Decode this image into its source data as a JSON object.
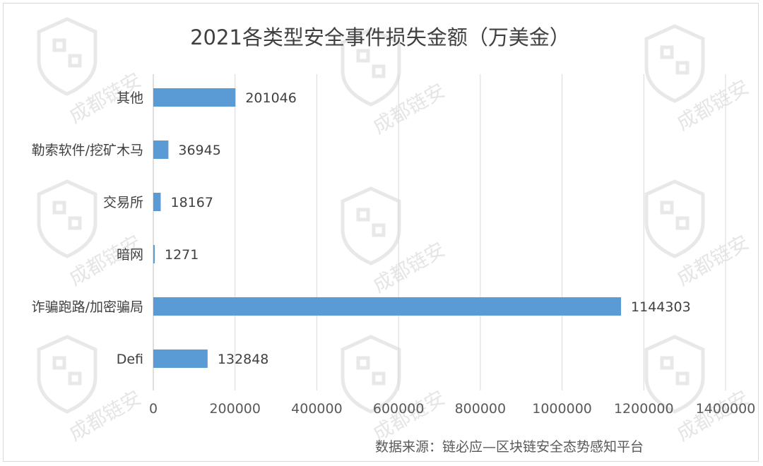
{
  "chart_data": {
    "type": "bar",
    "orientation": "horizontal",
    "title": "2021各类型安全事件损失金额（万美金）",
    "categories": [
      "其他",
      "勒索软件/挖矿木马",
      "交易所",
      "暗网",
      "诈骗跑路/加密骗局",
      "Defi"
    ],
    "values": [
      201046,
      36945,
      18167,
      1271,
      1144303,
      132848
    ],
    "data_labels": [
      "201046",
      "36945",
      "18167",
      "1271",
      "1144303",
      "132848"
    ],
    "xlim": [
      0,
      1400000
    ],
    "x_ticks": [
      0,
      200000,
      400000,
      600000,
      800000,
      1000000,
      1200000,
      1400000
    ],
    "x_tick_labels": [
      "0",
      "200000",
      "400000",
      "600000",
      "800000",
      "1000000",
      "1200000",
      "1400000"
    ],
    "grid": "vertical",
    "bar_color": "#5B9BD5",
    "source": "数据来源：链必应—区块链安全态势感知平台"
  },
  "watermark": {
    "text": "成都链安",
    "color": "#d0d0d0"
  }
}
